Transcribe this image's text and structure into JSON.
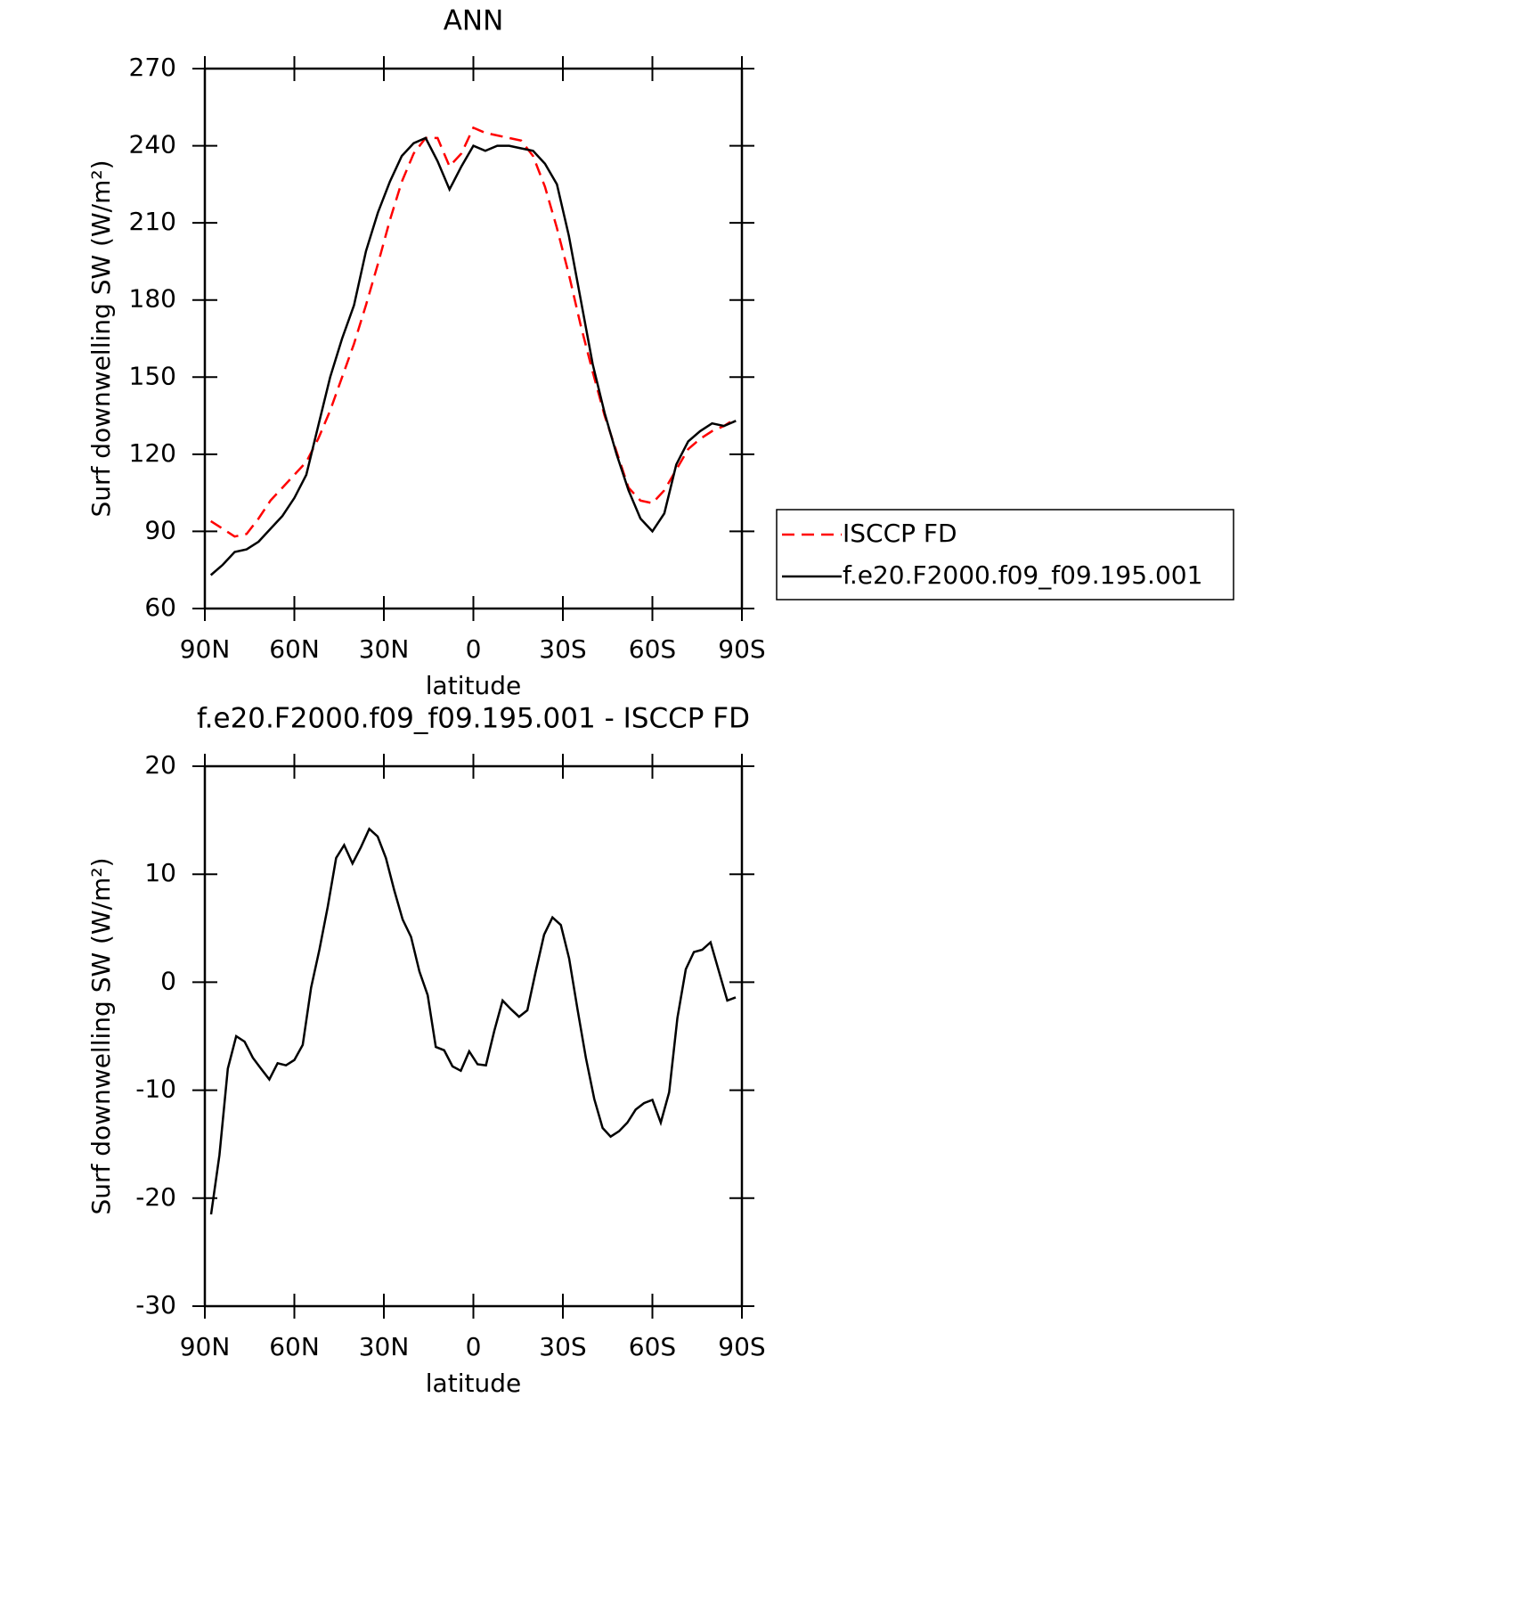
{
  "chart_data": [
    {
      "type": "line",
      "title": "ANN",
      "xlabel": "latitude",
      "ylabel": "Surf downwelling SW (W/m²)",
      "x": [
        88,
        84,
        80,
        76,
        72,
        68,
        64,
        60,
        56,
        52,
        48,
        44,
        40,
        36,
        32,
        28,
        24,
        20,
        16,
        12,
        8,
        4,
        0,
        -4,
        -8,
        -12,
        -16,
        -20,
        -24,
        -28,
        -32,
        -36,
        -40,
        -44,
        -48,
        -52,
        -56,
        -60,
        -64,
        -68,
        -72,
        -76,
        -80,
        -84,
        -88
      ],
      "series": [
        {
          "name": "ISCCP FD",
          "color": "#ff0000",
          "dash": true,
          "values": [
            94,
            91,
            88,
            89,
            95,
            102,
            107,
            112,
            117,
            126,
            137,
            150,
            163,
            178,
            194,
            211,
            226,
            237,
            243,
            243,
            232,
            237,
            247,
            245,
            244,
            243,
            242,
            236,
            224,
            208,
            190,
            170,
            152,
            135,
            121,
            107,
            102,
            101,
            106,
            114,
            122,
            126,
            129,
            131,
            134
          ]
        },
        {
          "name": "f.e20.F2000.f09_f09.195.001",
          "color": "#000000",
          "dash": false,
          "values": [
            73,
            77,
            82,
            83,
            86,
            91,
            96,
            103,
            112,
            131,
            150,
            165,
            178,
            199,
            214,
            226,
            236,
            241,
            243,
            234,
            223,
            232,
            240,
            238,
            240,
            240,
            239,
            238,
            233,
            225,
            205,
            180,
            155,
            136,
            120,
            106,
            95,
            90,
            97,
            116,
            125,
            129,
            132,
            131,
            133
          ]
        }
      ],
      "xlim": [
        90,
        -90
      ],
      "xticks": [
        {
          "value": 90,
          "label": "90N"
        },
        {
          "value": 60,
          "label": "60N"
        },
        {
          "value": 30,
          "label": "30N"
        },
        0,
        {
          "value": -30,
          "label": "30S"
        },
        {
          "value": -60,
          "label": "60S"
        },
        {
          "value": -90,
          "label": "90S"
        }
      ],
      "ylim": [
        60,
        270
      ],
      "yticks": [
        60,
        90,
        120,
        150,
        180,
        210,
        240,
        270
      ],
      "legend": "right"
    },
    {
      "type": "line",
      "title": "f.e20.F2000.f09_f09.195.001 - ISCCP FD",
      "xlabel": "latitude",
      "ylabel": "Surf downwelling SW (W/m²)",
      "x": [
        87.9,
        85.1,
        82.3,
        79.5,
        76.7,
        73.9,
        71.2,
        68.4,
        65.6,
        62.8,
        60.0,
        57.2,
        54.4,
        51.6,
        48.8,
        46.0,
        43.3,
        40.5,
        37.7,
        34.9,
        32.1,
        29.3,
        26.5,
        23.7,
        20.9,
        18.1,
        15.3,
        12.6,
        9.8,
        7.0,
        4.2,
        1.4,
        -1.4,
        -4.2,
        -7.0,
        -9.8,
        -12.6,
        -15.3,
        -18.1,
        -20.9,
        -23.7,
        -26.5,
        -29.3,
        -32.1,
        -34.9,
        -37.7,
        -40.5,
        -43.3,
        -46.0,
        -48.8,
        -51.6,
        -54.4,
        -57.2,
        -60.0,
        -62.8,
        -65.6,
        -68.4,
        -71.2,
        -73.9,
        -76.7,
        -79.5,
        -82.3,
        -85.1,
        -87.9
      ],
      "series": [
        {
          "color": "#000000",
          "dash": false,
          "values": [
            -21.5,
            -16,
            -8,
            -5,
            -5.5,
            -7,
            -8,
            -9,
            -7.5,
            -7.7,
            -7.2,
            -5.8,
            -0.5,
            3,
            7,
            11.5,
            12.7,
            11,
            12.5,
            14.2,
            13.5,
            11.5,
            8.5,
            5.8,
            4.2,
            1,
            -1.2,
            -6,
            -6.3,
            -7.8,
            -8.2,
            -6.4,
            -7.6,
            -7.7,
            -4.5,
            -1.7,
            -2.5,
            -3.2,
            -2.6,
            1,
            4.4,
            6,
            5.3,
            2.2,
            -2.5,
            -7,
            -10.8,
            -13.5,
            -14.3,
            -13.8,
            -13,
            -11.8,
            -11.2,
            -10.9,
            -13,
            -10.2,
            -3.3,
            1.2,
            2.8,
            3,
            3.7,
            1,
            -1.7,
            -1.4
          ]
        }
      ],
      "xlim": [
        90,
        -90
      ],
      "xticks": [
        {
          "value": 90,
          "label": "90N"
        },
        {
          "value": 60,
          "label": "60N"
        },
        {
          "value": 30,
          "label": "30N"
        },
        0,
        {
          "value": -30,
          "label": "30S"
        },
        {
          "value": -60,
          "label": "60S"
        },
        {
          "value": -90,
          "label": "90S"
        }
      ],
      "ylim": [
        -30,
        20
      ],
      "yticks": [
        -30,
        -20,
        -10,
        0,
        10,
        20
      ]
    }
  ]
}
